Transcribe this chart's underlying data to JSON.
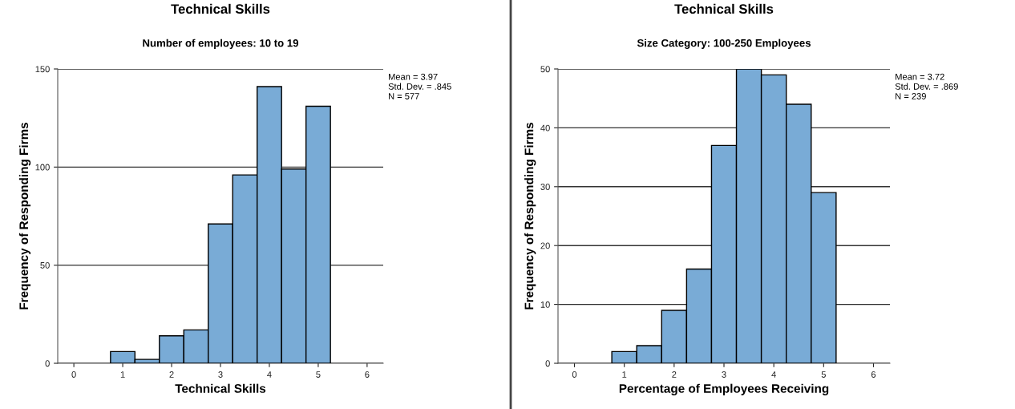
{
  "chart_data": [
    {
      "type": "histogram",
      "title": "Technical Skills",
      "subtitle": "Number of employees: 10 to 19",
      "xlabel": "Technical Skills",
      "ylabel": "Frequency of Responding Firms",
      "bins": [
        0.75,
        1.25,
        1.75,
        2.25,
        2.75,
        3.25,
        3.75,
        4.25,
        4.75,
        5.25
      ],
      "values": [
        6,
        2,
        14,
        17,
        71,
        96,
        141,
        99,
        131
      ],
      "color": "#79abd6",
      "xlim": [
        -0.33,
        6.33
      ],
      "xticks": [
        0,
        1,
        2,
        3,
        4,
        5,
        6
      ],
      "ylim": [
        0,
        150
      ],
      "yticks": [
        0,
        50,
        100,
        150
      ],
      "grid": "y",
      "annotations": [
        "Mean = 3.97",
        "Std. Dev. = .845",
        "N = 577"
      ]
    },
    {
      "type": "histogram",
      "title": "Technical Skills",
      "subtitle": "Size Category: 100-250 Employees",
      "xlabel": "Percentage of Employees Receiving",
      "ylabel": "Frequency of Responding Firms",
      "bins": [
        0.75,
        1.25,
        1.75,
        2.25,
        2.75,
        3.25,
        3.75,
        4.25,
        4.75,
        5.25
      ],
      "values": [
        2,
        3,
        9,
        16,
        37,
        50,
        49,
        44,
        29
      ],
      "color": "#79abd6",
      "xlim": [
        -0.33,
        6.33
      ],
      "xticks": [
        0,
        1,
        2,
        3,
        4,
        5,
        6
      ],
      "ylim": [
        0,
        50
      ],
      "yticks": [
        0,
        10,
        20,
        30,
        40,
        50
      ],
      "grid": "y",
      "annotations": [
        "Mean = 3.72",
        "Std. Dev. = .869",
        "N = 239"
      ]
    }
  ]
}
